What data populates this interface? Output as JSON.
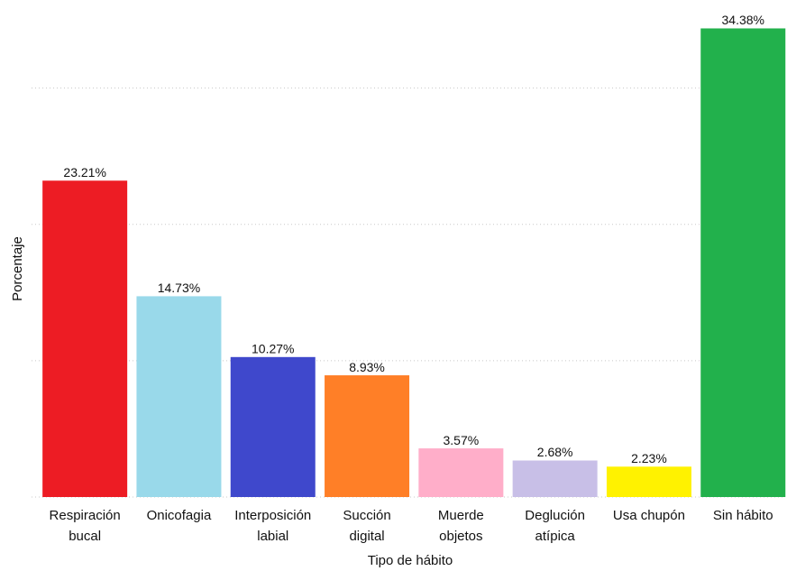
{
  "chart_data": {
    "type": "bar",
    "x_label": "Tipo de hábito",
    "y_label": "Porcentaje",
    "categories": [
      [
        "Respiración",
        "bucal"
      ],
      [
        "Onicofagia"
      ],
      [
        "Interposición",
        "labial"
      ],
      [
        "Succión",
        "digital"
      ],
      [
        "Muerde",
        "objetos"
      ],
      [
        "Deglución",
        "atípica"
      ],
      [
        "Usa chupón"
      ],
      [
        "Sin hábito"
      ]
    ],
    "values": [
      23.21,
      14.73,
      10.27,
      8.93,
      3.57,
      2.68,
      2.23,
      34.38
    ],
    "value_labels": [
      "23.21%",
      "14.73%",
      "10.27%",
      "8.93%",
      "3.57%",
      "2.68%",
      "2.23%",
      "34.38%"
    ],
    "colors": [
      "#ed1c24",
      "#99d9ea",
      "#3f48cc",
      "#ff7f27",
      "#ffaec9",
      "#c8bfe7",
      "#fff200",
      "#22b14c"
    ],
    "ylim": [
      0,
      36
    ],
    "yticks": [
      0,
      10,
      20,
      30
    ],
    "grid": true
  }
}
